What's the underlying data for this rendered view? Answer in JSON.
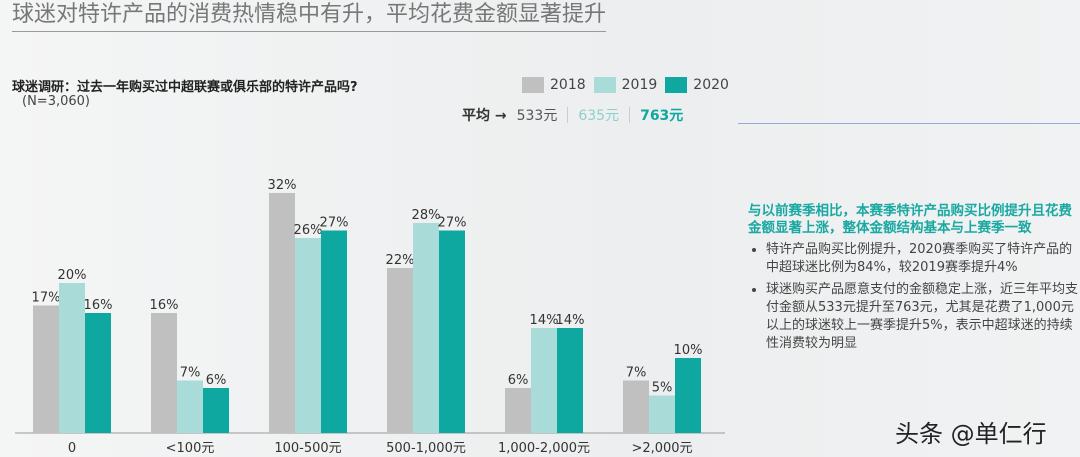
{
  "title": "球迷对特许产品的消费热情稳中有升，平均花费金额显著提升",
  "question": "球迷调研：过去一年购买过中超联赛或俱乐部的特许产品吗?",
  "sample": "(N=3,060)",
  "average": {
    "label": "平均 →",
    "values": [
      "533元",
      "635元",
      "763元"
    ]
  },
  "summary": {
    "headline": "与以前赛季相比，本赛季特许产品购买比例提升且花费金额显著上涨，整体金额结构基本与上赛季一致",
    "bullets": [
      "特许产品购买比例提升，2020赛季购买了特许产品的中超球迷比例为84%，较2019赛季提升4%",
      "球迷购买产品愿意支付的金额稳定上涨，近三年平均支付金额从533元提升至763元，尤其是花费了1,000元以上的球迷较上一赛季提升5%，表示中超球迷的持续性消费较为明显"
    ]
  },
  "watermark": "头条 @单仁行",
  "chart_data": {
    "type": "bar",
    "categories": [
      "0",
      "<100元",
      "100-500元",
      "500-1,000元",
      "1,000-2,000元",
      ">2,000元"
    ],
    "series": [
      {
        "name": "2018",
        "color": "#c0c0c0",
        "values": [
          17,
          16,
          32,
          22,
          6,
          7
        ]
      },
      {
        "name": "2019",
        "color": "#a9dbd8",
        "values": [
          20,
          7,
          26,
          28,
          14,
          5
        ]
      },
      {
        "name": "2020",
        "color": "#0fa8a0",
        "values": [
          16,
          6,
          27,
          27,
          14,
          10
        ]
      }
    ],
    "unit": "%",
    "legend": "top-right",
    "grid": false,
    "ylim": [
      0,
      32
    ]
  }
}
